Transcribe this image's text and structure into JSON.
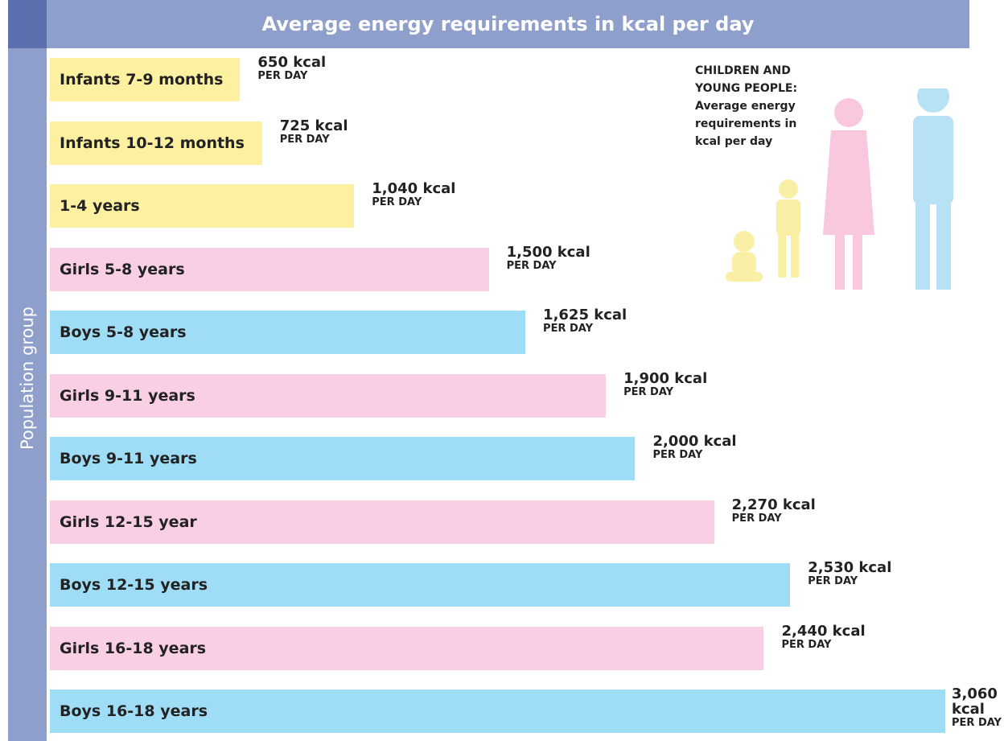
{
  "chart_data": {
    "type": "bar",
    "orientation": "horizontal",
    "title": "Average energy requirements in kcal per day",
    "y_label": "Population group",
    "categories": [
      "Infants 7-9 months",
      "Infants 10-12 months",
      "1-4 years",
      "Girls 5-8 years",
      "Boys 5-8 years",
      "Girls 9-11 years",
      "Boys 9-11 years",
      "Girls 12-15 year",
      "Boys 12-15 years",
      "Girls 16-18 years",
      "Boys 16-18 years"
    ],
    "values": [
      650,
      725,
      1040,
      1500,
      1625,
      1900,
      2000,
      2270,
      2530,
      2440,
      3060
    ],
    "value_labels": [
      "650 kcal",
      "725 kcal",
      "1,040 kcal",
      "1,500 kcal",
      "1,625 kcal",
      "1,900 kcal",
      "2,000 kcal",
      "2,270 kcal",
      "2,530 kcal",
      "2,440 kcal",
      "3,060 kcal"
    ],
    "value_label_note": "PER DAY",
    "colors": [
      "#fdf0a0",
      "#fdf0a0",
      "#fdf0a0",
      "#f9cfe6",
      "#9fdcf5",
      "#f9cfe6",
      "#9fdcf5",
      "#f9cfe6",
      "#9fdcf5",
      "#f9cfe6",
      "#9fdcf5"
    ],
    "annotation": [
      "CHILDREN AND",
      "YOUNG PEOPLE:",
      "Average energy",
      "requirements in",
      "kcal per day"
    ]
  }
}
